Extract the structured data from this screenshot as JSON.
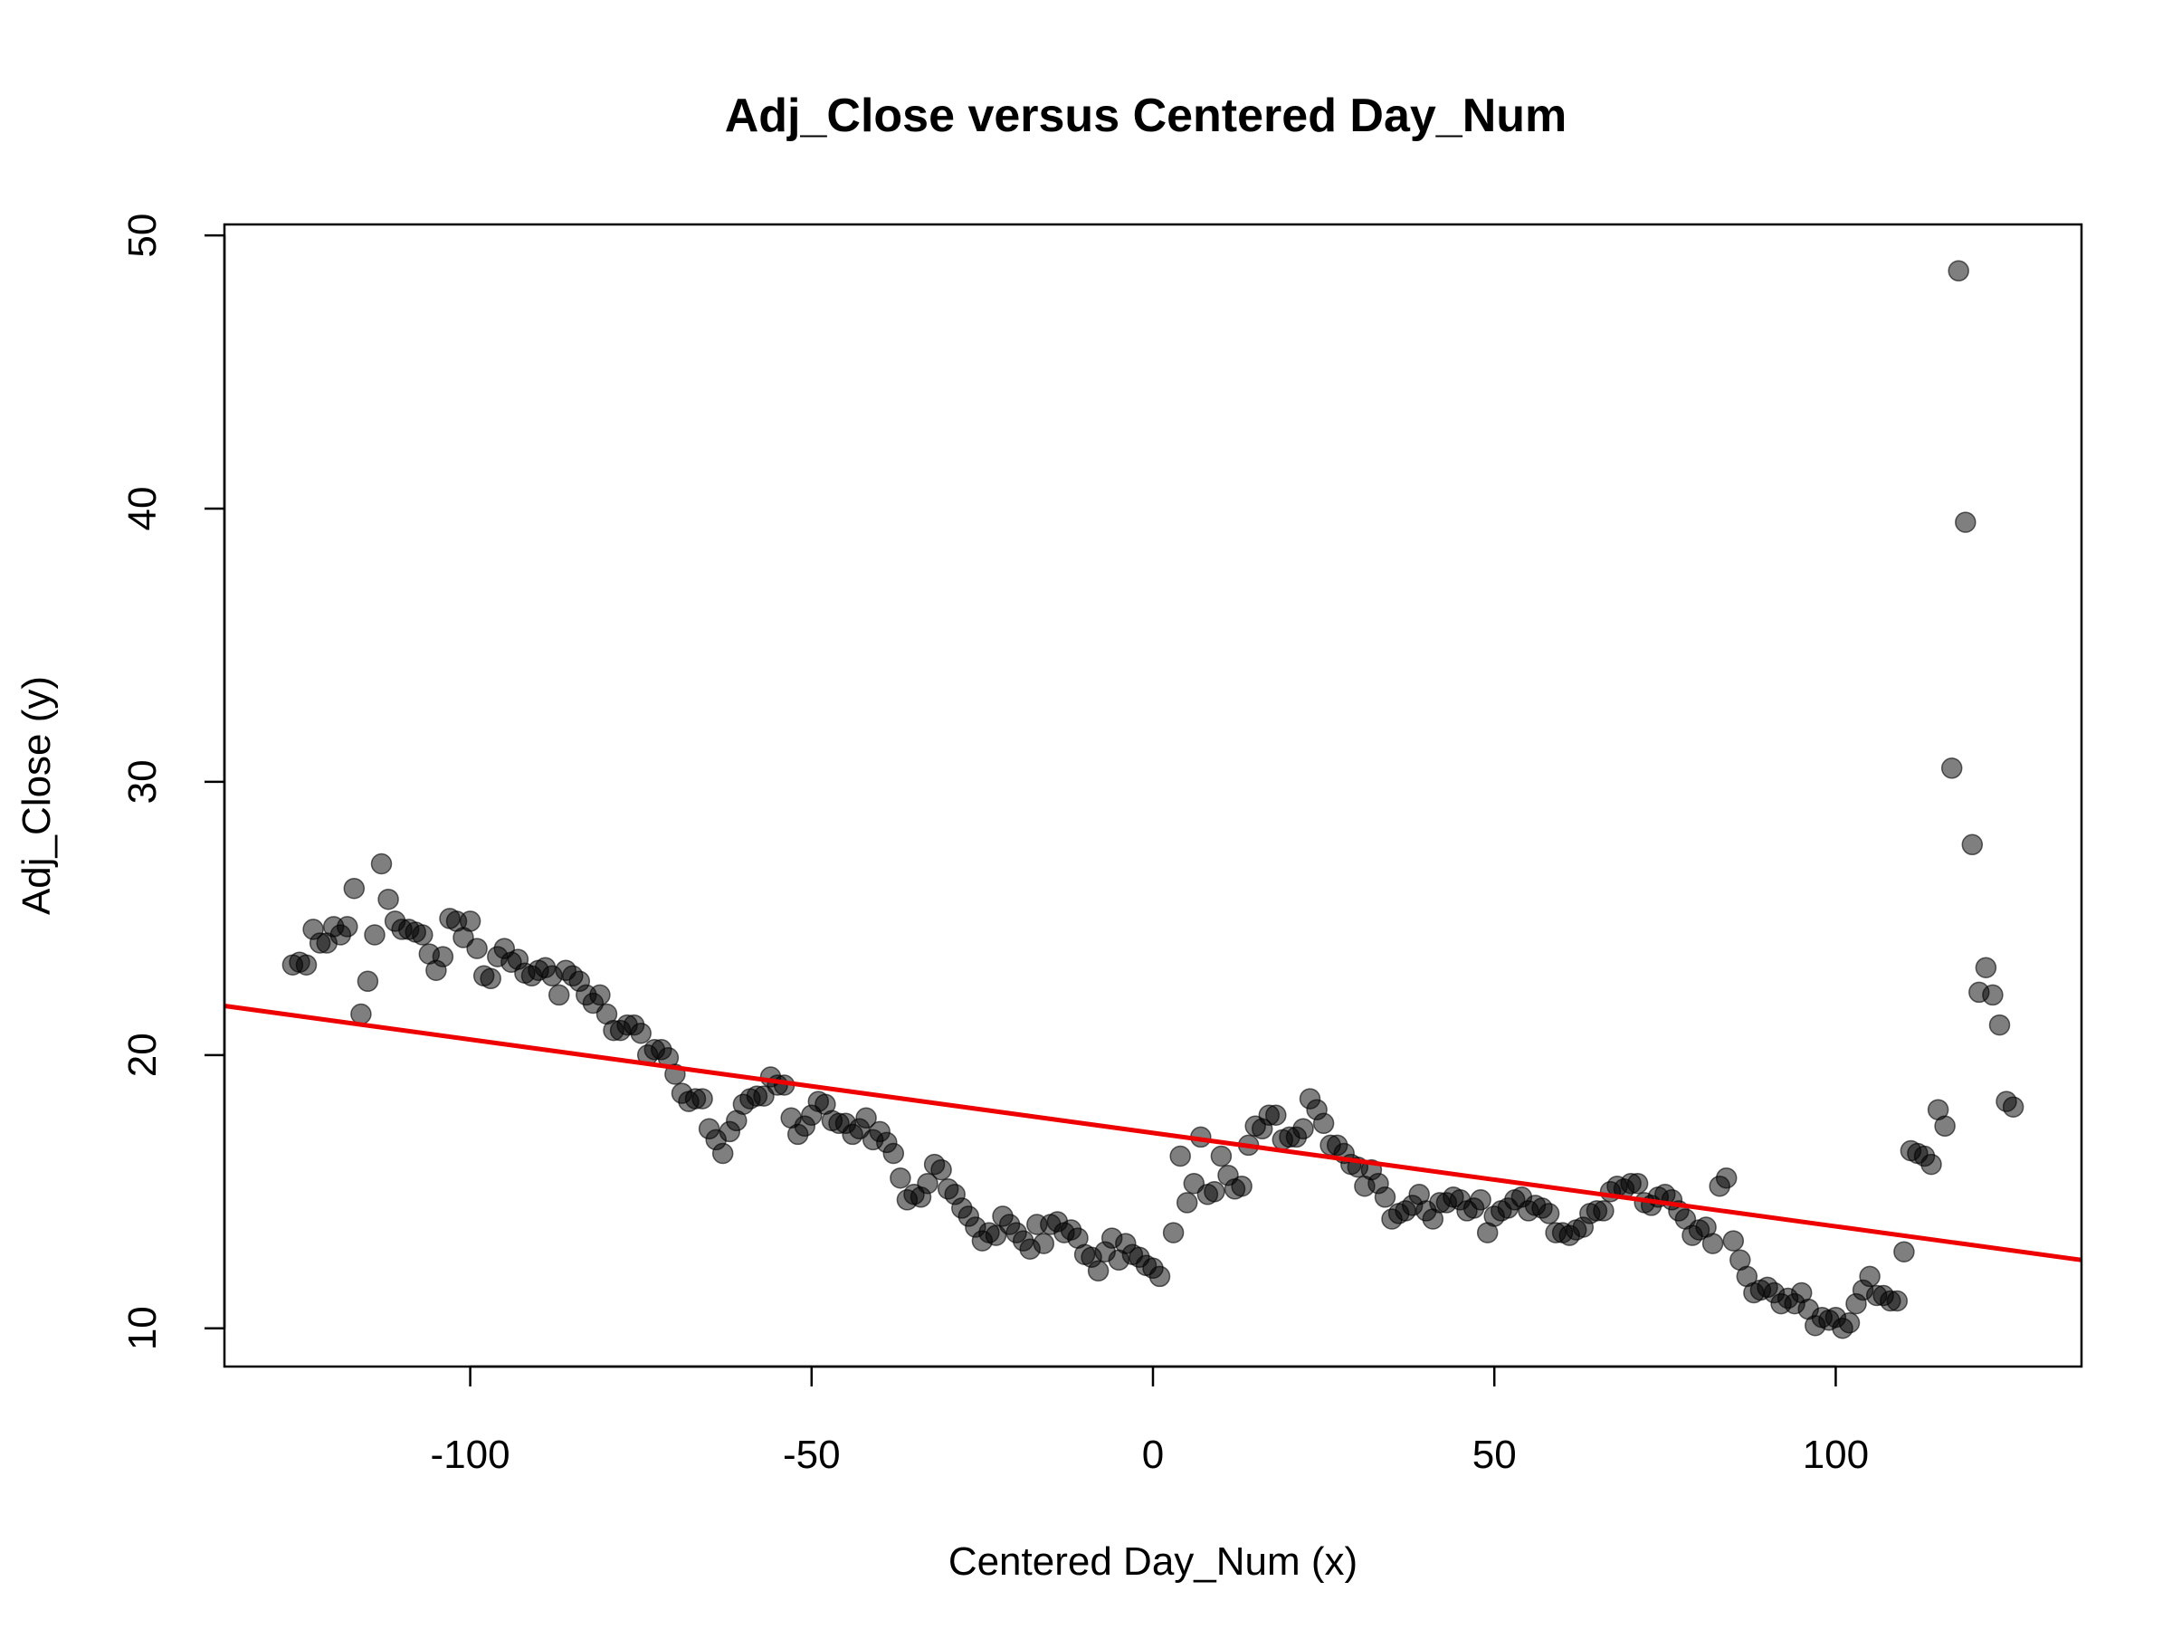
{
  "chart_data": {
    "type": "scatter",
    "title": "Adj_Close versus Centered Day_Num",
    "xlabel": "Centered Day_Num (x)",
    "ylabel": "Adj_Close (y)",
    "xlim": [
      -136,
      136
    ],
    "ylim": [
      8.6,
      50.4
    ],
    "x_ticks": [
      -100,
      -50,
      0,
      50,
      100
    ],
    "y_ticks": [
      10,
      20,
      30,
      40,
      50
    ],
    "x_tick_labels": [
      "-100",
      "-50",
      "0",
      "50",
      "100"
    ],
    "y_tick_labels": [
      "10",
      "20",
      "30",
      "40",
      "50"
    ],
    "grid": false,
    "legend": "none",
    "point_color": "#000000",
    "point_opacity": 0.5,
    "regression_line": {
      "x1": -136,
      "y1": 21.8,
      "x2": 136,
      "y2": 12.5,
      "color": "#ee0000"
    },
    "series": [
      {
        "points": [
          [
            -126,
            23.3
          ],
          [
            -125,
            23.4
          ],
          [
            -124,
            23.3
          ],
          [
            -123,
            24.6
          ],
          [
            -122,
            24.1
          ],
          [
            -121,
            24.1
          ],
          [
            -120,
            24.7
          ],
          [
            -119,
            24.4
          ],
          [
            -118,
            24.7
          ],
          [
            -117,
            26.1
          ],
          [
            -116,
            21.5
          ],
          [
            -115,
            22.7
          ],
          [
            -114,
            24.4
          ],
          [
            -113,
            27.0
          ],
          [
            -112,
            25.7
          ],
          [
            -111,
            24.9
          ],
          [
            -110,
            24.6
          ],
          [
            -109,
            24.6
          ],
          [
            -108,
            24.5
          ],
          [
            -107,
            24.4
          ],
          [
            -106,
            23.7
          ],
          [
            -105,
            23.1
          ],
          [
            -104,
            23.6
          ],
          [
            -103,
            25.0
          ],
          [
            -102,
            24.9
          ],
          [
            -101,
            24.3
          ],
          [
            -100,
            24.9
          ],
          [
            -99,
            23.9
          ],
          [
            -98,
            22.9
          ],
          [
            -97,
            22.8
          ],
          [
            -96,
            23.6
          ],
          [
            -95,
            23.9
          ],
          [
            -94,
            23.4
          ],
          [
            -93,
            23.5
          ],
          [
            -92,
            23.0
          ],
          [
            -91,
            22.9
          ],
          [
            -90,
            23.1
          ],
          [
            -89,
            23.2
          ],
          [
            -88,
            22.9
          ],
          [
            -87,
            22.2
          ],
          [
            -86,
            23.1
          ],
          [
            -85,
            22.9
          ],
          [
            -84,
            22.7
          ],
          [
            -83,
            22.2
          ],
          [
            -82,
            21.9
          ],
          [
            -81,
            22.2
          ],
          [
            -80,
            21.5
          ],
          [
            -79,
            20.9
          ],
          [
            -78,
            20.9
          ],
          [
            -77,
            21.1
          ],
          [
            -76,
            21.1
          ],
          [
            -75,
            20.8
          ],
          [
            -74,
            20.0
          ],
          [
            -73,
            20.2
          ],
          [
            -72,
            20.2
          ],
          [
            -71,
            19.9
          ],
          [
            -70,
            19.3
          ],
          [
            -69,
            18.6
          ],
          [
            -68,
            18.3
          ],
          [
            -67,
            18.4
          ],
          [
            -66,
            18.4
          ],
          [
            -65,
            17.3
          ],
          [
            -64,
            16.9
          ],
          [
            -63,
            16.4
          ],
          [
            -62,
            17.2
          ],
          [
            -61,
            17.6
          ],
          [
            -60,
            18.2
          ],
          [
            -59,
            18.4
          ],
          [
            -58,
            18.5
          ],
          [
            -57,
            18.5
          ],
          [
            -56,
            19.2
          ],
          [
            -55,
            18.9
          ],
          [
            -54,
            18.9
          ],
          [
            -53,
            17.7
          ],
          [
            -52,
            17.1
          ],
          [
            -51,
            17.4
          ],
          [
            -50,
            17.8
          ],
          [
            -49,
            18.3
          ],
          [
            -48,
            18.2
          ],
          [
            -47,
            17.6
          ],
          [
            -46,
            17.5
          ],
          [
            -45,
            17.5
          ],
          [
            -44,
            17.1
          ],
          [
            -43,
            17.3
          ],
          [
            -42,
            17.7
          ],
          [
            -41,
            16.9
          ],
          [
            -40,
            17.2
          ],
          [
            -39,
            16.8
          ],
          [
            -38,
            16.4
          ],
          [
            -37,
            15.5
          ],
          [
            -36,
            14.7
          ],
          [
            -35,
            14.9
          ],
          [
            -34,
            14.8
          ],
          [
            -33,
            15.3
          ],
          [
            -32,
            16.0
          ],
          [
            -31,
            15.8
          ],
          [
            -30,
            15.1
          ],
          [
            -29,
            14.9
          ],
          [
            -28,
            14.4
          ],
          [
            -27,
            14.1
          ],
          [
            -26,
            13.7
          ],
          [
            -25,
            13.2
          ],
          [
            -24,
            13.5
          ],
          [
            -23,
            13.4
          ],
          [
            -22,
            14.1
          ],
          [
            -21,
            13.8
          ],
          [
            -20,
            13.5
          ],
          [
            -19,
            13.2
          ],
          [
            -18,
            12.9
          ],
          [
            -17,
            13.8
          ],
          [
            -16,
            13.1
          ],
          [
            -15,
            13.8
          ],
          [
            -14,
            13.9
          ],
          [
            -13,
            13.5
          ],
          [
            -12,
            13.6
          ],
          [
            -11,
            13.3
          ],
          [
            -10,
            12.7
          ],
          [
            -9,
            12.6
          ],
          [
            -8,
            12.1
          ],
          [
            -7,
            12.8
          ],
          [
            -6,
            13.3
          ],
          [
            -5,
            12.5
          ],
          [
            -4,
            13.1
          ],
          [
            -3,
            12.7
          ],
          [
            -2,
            12.6
          ],
          [
            -1,
            12.3
          ],
          [
            0,
            12.2
          ],
          [
            1,
            11.9
          ],
          [
            3,
            13.5
          ],
          [
            4,
            16.3
          ],
          [
            5,
            14.6
          ],
          [
            6,
            15.3
          ],
          [
            7,
            17.0
          ],
          [
            8,
            14.9
          ],
          [
            9,
            15.0
          ],
          [
            10,
            16.3
          ],
          [
            11,
            15.6
          ],
          [
            12,
            15.1
          ],
          [
            13,
            15.2
          ],
          [
            14,
            16.7
          ],
          [
            15,
            17.4
          ],
          [
            16,
            17.3
          ],
          [
            17,
            17.8
          ],
          [
            18,
            17.8
          ],
          [
            19,
            16.9
          ],
          [
            20,
            17.0
          ],
          [
            21,
            17.0
          ],
          [
            22,
            17.3
          ],
          [
            23,
            18.4
          ],
          [
            24,
            18.0
          ],
          [
            25,
            17.5
          ],
          [
            26,
            16.7
          ],
          [
            27,
            16.7
          ],
          [
            28,
            16.4
          ],
          [
            29,
            16.0
          ],
          [
            30,
            15.9
          ],
          [
            31,
            15.2
          ],
          [
            32,
            15.8
          ],
          [
            33,
            15.3
          ],
          [
            34,
            14.8
          ],
          [
            35,
            14.0
          ],
          [
            36,
            14.2
          ],
          [
            37,
            14.3
          ],
          [
            38,
            14.5
          ],
          [
            39,
            14.9
          ],
          [
            40,
            14.3
          ],
          [
            41,
            14.0
          ],
          [
            42,
            14.6
          ],
          [
            43,
            14.6
          ],
          [
            44,
            14.8
          ],
          [
            45,
            14.7
          ],
          [
            46,
            14.3
          ],
          [
            47,
            14.4
          ],
          [
            48,
            14.7
          ],
          [
            49,
            13.5
          ],
          [
            50,
            14.1
          ],
          [
            51,
            14.3
          ],
          [
            52,
            14.4
          ],
          [
            53,
            14.7
          ],
          [
            54,
            14.8
          ],
          [
            55,
            14.3
          ],
          [
            56,
            14.5
          ],
          [
            57,
            14.4
          ],
          [
            58,
            14.2
          ],
          [
            59,
            13.5
          ],
          [
            60,
            13.5
          ],
          [
            61,
            13.4
          ],
          [
            62,
            13.6
          ],
          [
            63,
            13.7
          ],
          [
            64,
            14.2
          ],
          [
            65,
            14.3
          ],
          [
            66,
            14.3
          ],
          [
            67,
            15.0
          ],
          [
            68,
            15.2
          ],
          [
            69,
            15.1
          ],
          [
            70,
            15.3
          ],
          [
            71,
            15.3
          ],
          [
            72,
            14.6
          ],
          [
            73,
            14.5
          ],
          [
            74,
            14.8
          ],
          [
            75,
            14.9
          ],
          [
            76,
            14.7
          ],
          [
            77,
            14.3
          ],
          [
            78,
            14.0
          ],
          [
            79,
            13.4
          ],
          [
            80,
            13.6
          ],
          [
            81,
            13.7
          ],
          [
            82,
            13.1
          ],
          [
            83,
            15.2
          ],
          [
            84,
            15.5
          ],
          [
            85,
            13.2
          ],
          [
            86,
            12.5
          ],
          [
            87,
            11.9
          ],
          [
            88,
            11.3
          ],
          [
            89,
            11.4
          ],
          [
            90,
            11.5
          ],
          [
            91,
            11.3
          ],
          [
            92,
            10.9
          ],
          [
            93,
            11.1
          ],
          [
            94,
            10.9
          ],
          [
            95,
            11.3
          ],
          [
            96,
            10.7
          ],
          [
            97,
            10.1
          ],
          [
            98,
            10.4
          ],
          [
            99,
            10.3
          ],
          [
            100,
            10.4
          ],
          [
            101,
            10.0
          ],
          [
            102,
            10.2
          ],
          [
            103,
            10.9
          ],
          [
            104,
            11.4
          ],
          [
            105,
            11.9
          ],
          [
            106,
            11.2
          ],
          [
            107,
            11.2
          ],
          [
            108,
            11.0
          ],
          [
            109,
            11.0
          ],
          [
            110,
            12.8
          ],
          [
            111,
            16.5
          ],
          [
            112,
            16.4
          ],
          [
            113,
            16.3
          ],
          [
            114,
            16.0
          ],
          [
            115,
            18.0
          ],
          [
            116,
            17.4
          ],
          [
            117,
            30.5
          ],
          [
            118,
            48.7
          ],
          [
            119,
            39.5
          ],
          [
            120,
            27.7
          ],
          [
            121,
            22.3
          ],
          [
            122,
            23.2
          ],
          [
            123,
            22.2
          ],
          [
            124,
            21.1
          ],
          [
            125,
            18.3
          ],
          [
            126,
            18.1
          ]
        ]
      }
    ]
  }
}
